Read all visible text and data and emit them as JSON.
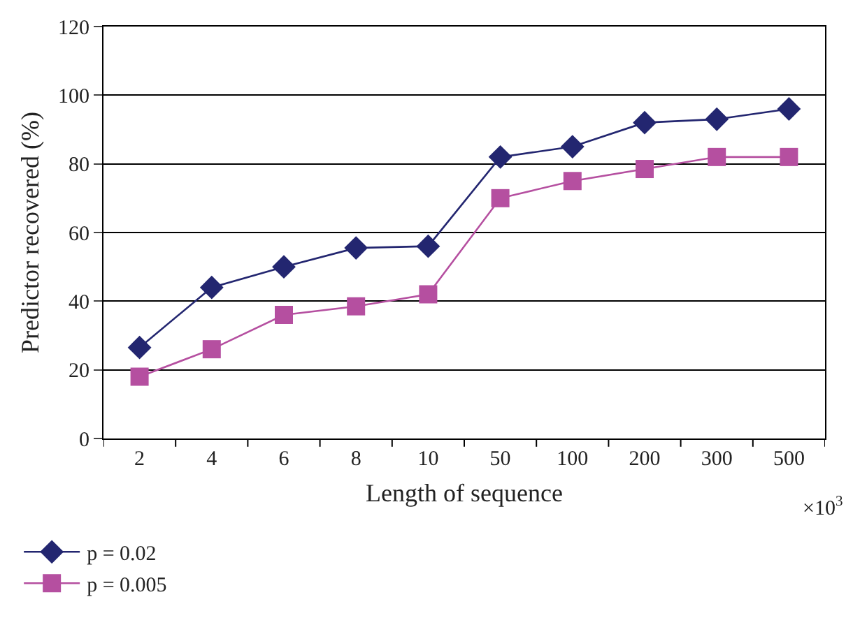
{
  "chart_data": {
    "type": "line",
    "xlabel": "Length of sequence",
    "ylabel": "Predictor recovered (%)",
    "categories": [
      "2",
      "4",
      "6",
      "8",
      "10",
      "50",
      "100",
      "200",
      "300",
      "500"
    ],
    "series": [
      {
        "name": "p = 0.02",
        "color": "#232670",
        "marker": "diamond",
        "values": [
          26.5,
          44,
          50,
          55.5,
          56,
          82,
          85,
          92,
          93,
          96
        ]
      },
      {
        "name": "p = 0.005",
        "color": "#b54fa0",
        "marker": "square",
        "values": [
          18,
          26,
          36,
          38.5,
          42,
          70,
          75,
          78.5,
          82,
          82
        ]
      }
    ],
    "ylim": [
      0,
      120
    ],
    "yticks": [
      0,
      20,
      40,
      60,
      80,
      100,
      120
    ],
    "grid": "y",
    "legend": "bottom left",
    "annotations": [
      "×10$^{3}$"
    ]
  }
}
